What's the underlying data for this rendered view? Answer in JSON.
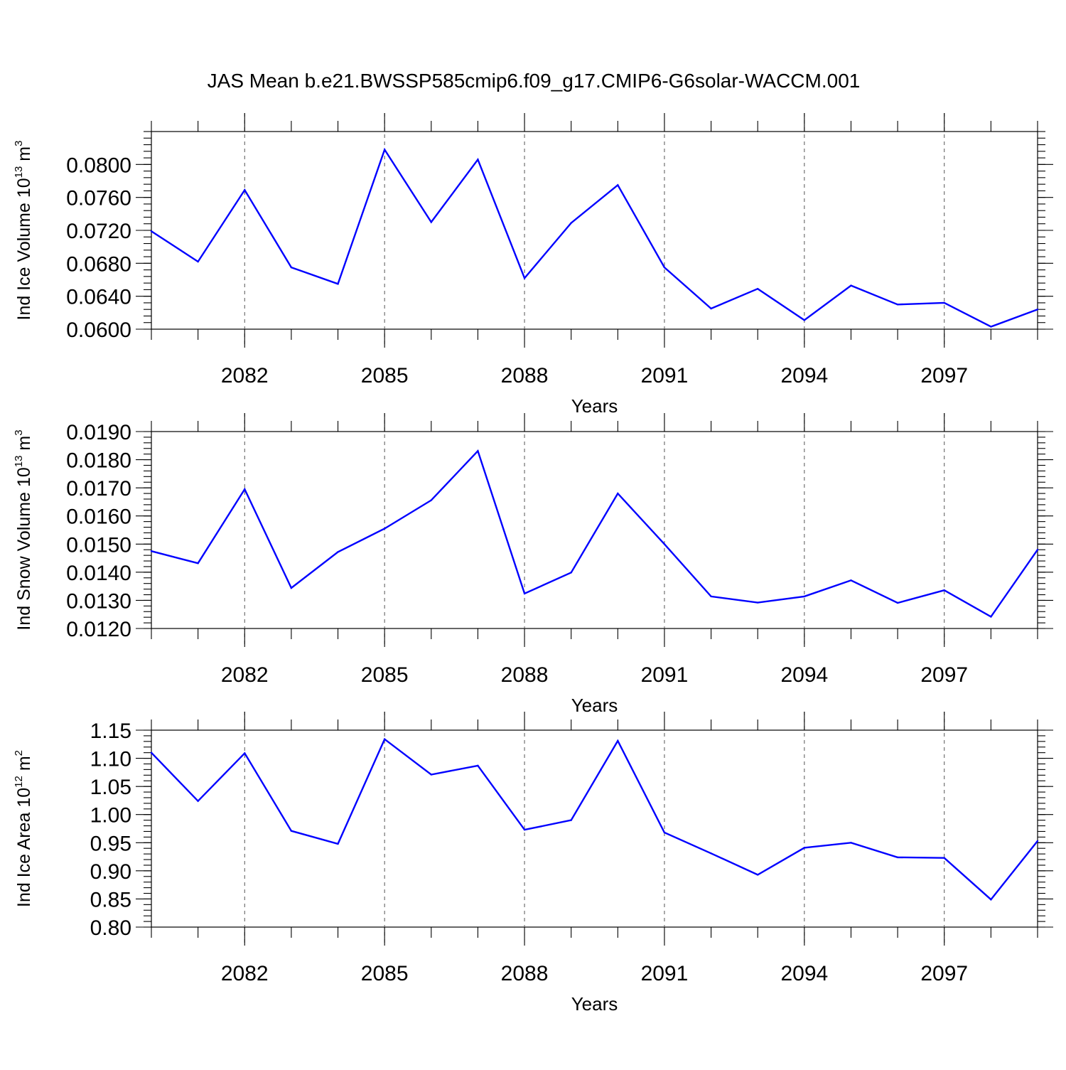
{
  "title": "JAS Mean b.e21.BWSSP585cmip6.f09_g17.CMIP6-G6solar-WACCM.001",
  "line_color": "#0000ff",
  "chart_data": [
    {
      "type": "line",
      "xlabel": "Years",
      "ylabel": {
        "prefix": "Ind Ice Volume 10",
        "exp": "13",
        "unit": " m",
        "unit_exp": "3"
      },
      "x": [
        2080,
        2081,
        2082,
        2083,
        2084,
        2085,
        2086,
        2087,
        2088,
        2089,
        2090,
        2091,
        2092,
        2093,
        2094,
        2095,
        2096,
        2097,
        2098,
        2099
      ],
      "values": [
        0.0719,
        0.0682,
        0.0769,
        0.0675,
        0.0655,
        0.0818,
        0.073,
        0.0806,
        0.0662,
        0.0729,
        0.0775,
        0.0675,
        0.0625,
        0.0649,
        0.0611,
        0.0653,
        0.063,
        0.0632,
        0.0603,
        0.0624
      ],
      "xlim": [
        2080,
        2099
      ],
      "ylim": [
        0.06,
        0.084
      ],
      "xticks": [
        2082,
        2085,
        2088,
        2091,
        2094,
        2097
      ],
      "xtick_labels": [
        "2082",
        "2085",
        "2088",
        "2091",
        "2094",
        "2097"
      ],
      "yticks": [
        0.06,
        0.064,
        0.068,
        0.072,
        0.076,
        0.08
      ],
      "ytick_labels": [
        "0.0600",
        "0.0640",
        "0.0680",
        "0.0720",
        "0.0760",
        "0.0800"
      ],
      "y_minor_step": 0.0008,
      "grid": "vertical dashed at major x ticks"
    },
    {
      "type": "line",
      "xlabel": "Years",
      "ylabel": {
        "prefix": "Ind Snow Volume 10",
        "exp": "13",
        "unit": " m",
        "unit_exp": "3"
      },
      "x": [
        2080,
        2081,
        2082,
        2083,
        2084,
        2085,
        2086,
        2087,
        2088,
        2089,
        2090,
        2091,
        2092,
        2093,
        2094,
        2095,
        2096,
        2097,
        2098,
        2099
      ],
      "values": [
        0.01475,
        0.01432,
        0.01695,
        0.01344,
        0.01472,
        0.01555,
        0.01656,
        0.01831,
        0.01324,
        0.01399,
        0.0168,
        0.015,
        0.01314,
        0.01292,
        0.01314,
        0.01371,
        0.01291,
        0.01336,
        0.01242,
        0.0148
      ],
      "xlim": [
        2080,
        2099
      ],
      "ylim": [
        0.012,
        0.019
      ],
      "xticks": [
        2082,
        2085,
        2088,
        2091,
        2094,
        2097
      ],
      "xtick_labels": [
        "2082",
        "2085",
        "2088",
        "2091",
        "2094",
        "2097"
      ],
      "yticks": [
        0.012,
        0.013,
        0.014,
        0.015,
        0.016,
        0.017,
        0.018,
        0.019
      ],
      "ytick_labels": [
        "0.0120",
        "0.0130",
        "0.0140",
        "0.0150",
        "0.0160",
        "0.0170",
        "0.0180",
        "0.0190"
      ],
      "y_minor_step": 0.0002,
      "grid": "vertical dashed at major x ticks"
    },
    {
      "type": "line",
      "xlabel": "Years",
      "ylabel": {
        "prefix": "Ind Ice Area 10",
        "exp": "12",
        "unit": " m",
        "unit_exp": "2"
      },
      "x": [
        2080,
        2081,
        2082,
        2083,
        2084,
        2085,
        2086,
        2087,
        2088,
        2089,
        2090,
        2091,
        2092,
        2093,
        2094,
        2095,
        2096,
        2097,
        2098,
        2099
      ],
      "values": [
        1.11,
        1.024,
        1.109,
        0.971,
        0.948,
        1.134,
        1.071,
        1.087,
        0.973,
        0.99,
        1.131,
        0.968,
        0.931,
        0.893,
        0.941,
        0.95,
        0.924,
        0.923,
        0.849,
        0.953
      ],
      "xlim": [
        2080,
        2099
      ],
      "ylim": [
        0.8,
        1.15
      ],
      "xticks": [
        2082,
        2085,
        2088,
        2091,
        2094,
        2097
      ],
      "xtick_labels": [
        "2082",
        "2085",
        "2088",
        "2091",
        "2094",
        "2097"
      ],
      "yticks": [
        0.8,
        0.85,
        0.9,
        0.95,
        1.0,
        1.05,
        1.1,
        1.15
      ],
      "ytick_labels": [
        "0.80",
        "0.85",
        "0.90",
        "0.95",
        "1.00",
        "1.05",
        "1.10",
        "1.15"
      ],
      "y_minor_step": 0.01,
      "grid": "vertical dashed at major x ticks"
    }
  ]
}
